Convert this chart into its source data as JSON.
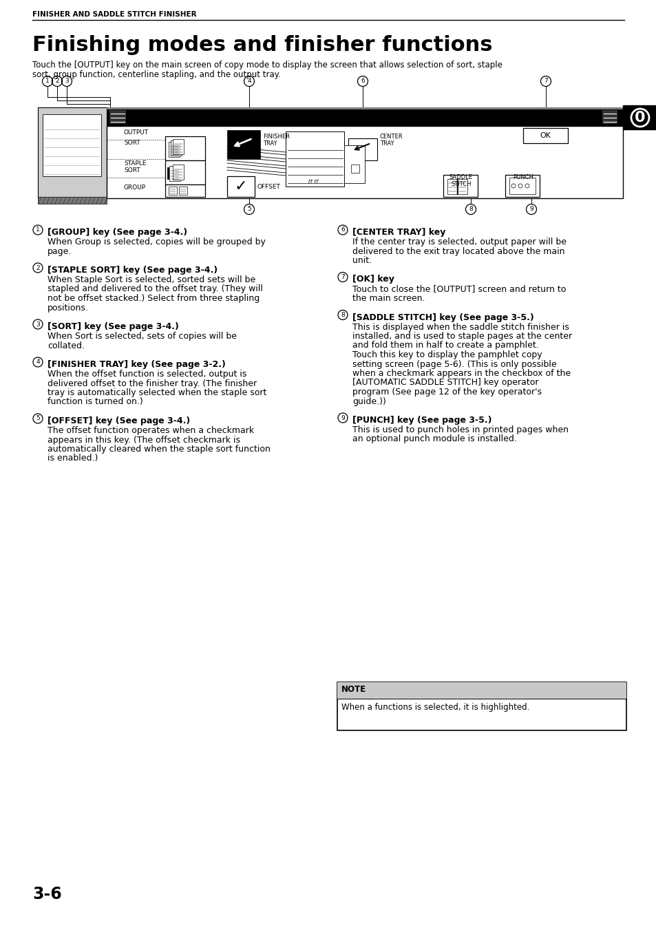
{
  "page_header": "FINISHER AND SADDLE STITCH FINISHER",
  "section_title": "Finishing modes and finisher functions",
  "intro_line1": "Touch the [OUTPUT] key on the main screen of copy mode to display the screen that allows selection of sort, staple",
  "intro_line2": "sort, group function, centerline stapling, and the output tray.",
  "page_number": "3-6",
  "left_items": [
    {
      "num": "1",
      "label": "[GROUP] key (See page 3-4.)",
      "body": [
        "When Group is selected, copies will be grouped by",
        "page."
      ]
    },
    {
      "num": "2",
      "label": "[STAPLE SORT] key (See page 3-4.)",
      "body": [
        "When Staple Sort is selected, sorted sets will be",
        "stapled and delivered to the offset tray. (They will",
        "not be offset stacked.) Select from three stapling",
        "positions."
      ]
    },
    {
      "num": "3",
      "label": "[SORT] key (See page 3-4.)",
      "body": [
        "When Sort is selected, sets of copies will be",
        "collated."
      ]
    },
    {
      "num": "4",
      "label": "[FINISHER TRAY] key (See page 3-2.)",
      "body": [
        "When the offset function is selected, output is",
        "delivered offset to the finisher tray. (The finisher",
        "tray is automatically selected when the staple sort",
        "function is turned on.)"
      ]
    },
    {
      "num": "5",
      "label": "[OFFSET] key (See page 3-4.)",
      "body": [
        "The offset function operates when a checkmark",
        "appears in this key. (The offset checkmark is",
        "automatically cleared when the staple sort function",
        "is enabled.)"
      ]
    }
  ],
  "right_items": [
    {
      "num": "6",
      "label": "[CENTER TRAY] key",
      "body": [
        "If the center tray is selected, output paper will be",
        "delivered to the exit tray located above the main",
        "unit."
      ]
    },
    {
      "num": "7",
      "label": "[OK] key",
      "body": [
        "Touch to close the [OUTPUT] screen and return to",
        "the main screen."
      ]
    },
    {
      "num": "8",
      "label": "[SADDLE STITCH] key (See page 3-5.)",
      "body": [
        "This is displayed when the saddle stitch finisher is",
        "installed, and is used to staple pages at the center",
        "and fold them in half to create a pamphlet.",
        "Touch this key to display the pamphlet copy",
        "setting screen (page 5-6). (This is only possible",
        "when a checkmark appears in the checkbox of the",
        "[AUTOMATIC SADDLE STITCH] key operator",
        "program (See page 12 of the key operator's",
        "guide.))"
      ]
    },
    {
      "num": "9",
      "label": "[PUNCH] key (See page 3-5.)",
      "body": [
        "This is used to punch holes in printed pages when",
        "an optional punch module is installed."
      ]
    }
  ],
  "note_title": "NOTE",
  "note_body": "When a functions is selected, it is highlighted.",
  "diag_circle_nums_top": [
    "1",
    "2",
    "3",
    "4",
    "6",
    "7"
  ],
  "diag_circle_nums_bot": [
    "5",
    "8",
    "9"
  ]
}
